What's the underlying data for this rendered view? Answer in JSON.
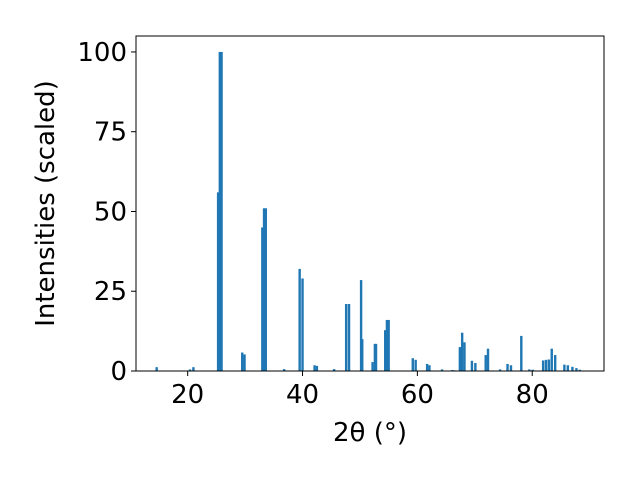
{
  "chart_data": {
    "type": "bar",
    "xlabel": "2θ (°)",
    "ylabel": "Intensities (scaled)",
    "xlim": [
      11,
      92.5
    ],
    "ylim": [
      0,
      105
    ],
    "x_ticks": [
      20,
      40,
      60,
      80
    ],
    "y_ticks": [
      0,
      25,
      50,
      75,
      100
    ],
    "bar_color": "#1f77b4",
    "grid": false,
    "series": [
      {
        "x": [
          14.6,
          20.4,
          21.0,
          25.3,
          25.6,
          25.9,
          29.5,
          29.9,
          33.0,
          33.3,
          33.6,
          36.8,
          39.5,
          40.0,
          42.1,
          42.5,
          45.5,
          47.6,
          48.1,
          50.2,
          50.4,
          52.2,
          52.6,
          52.8,
          54.4,
          54.7,
          55.0,
          59.2,
          59.7,
          61.7,
          62.1,
          64.3,
          66.1,
          66.5,
          67.4,
          67.8,
          68.2,
          69.5,
          70.1,
          71.9,
          72.3,
          74.4,
          75.7,
          76.3,
          78.1,
          79.5,
          80.1,
          81.9,
          82.4,
          82.9,
          83.4,
          84.0,
          85.6,
          86.2,
          87.0,
          87.7,
          88.3
        ],
        "values": [
          1.2,
          0.5,
          1.2,
          56,
          100,
          100,
          5.8,
          5.2,
          45,
          51,
          51,
          0.6,
          32,
          29,
          1.8,
          1.6,
          0.6,
          21,
          21,
          28.5,
          10,
          2.8,
          8.5,
          8.5,
          12.8,
          16,
          16,
          4,
          3.5,
          2.2,
          1.8,
          0.5,
          0.3,
          0.2,
          7.5,
          12,
          9,
          3.2,
          2.5,
          5,
          7,
          0.5,
          2.2,
          1.8,
          11,
          0.5,
          0.4,
          3.3,
          3.5,
          3.6,
          7,
          5,
          2,
          1.8,
          1.3,
          0.9,
          0.4
        ]
      }
    ]
  }
}
